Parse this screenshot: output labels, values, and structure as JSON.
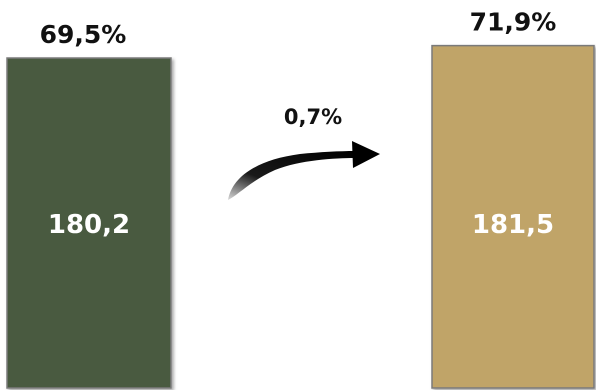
{
  "chart_data": {
    "type": "bar",
    "categories": [
      "",
      ""
    ],
    "values": [
      180.2,
      181.5
    ],
    "value_labels": [
      "180,2",
      "181,5"
    ],
    "top_labels": [
      "69,5%",
      "71,9%"
    ],
    "change_label": "0,7%",
    "colors": [
      "#4a5a41",
      "#c0a468"
    ],
    "border_color": "#7a7a7a",
    "arrow_color": "#000000",
    "title": "",
    "xlabel": "",
    "ylabel": "",
    "grid": false,
    "legend": "none"
  }
}
